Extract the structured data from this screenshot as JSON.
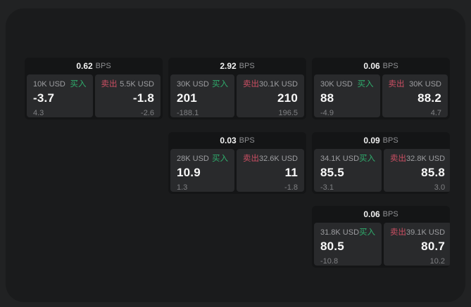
{
  "colors": {
    "buy_green": "#2fae6d",
    "sell_red": "#cc4f63"
  },
  "cards": [
    {
      "row": 1,
      "col": 1,
      "bps_value": "0.62",
      "bps_unit": "BPS",
      "buy": {
        "amount": "10K USD",
        "side_label": "买入",
        "price": "-3.7",
        "delta": "4.3"
      },
      "sell": {
        "amount": "5.5K USD",
        "side_label": "卖出",
        "price": "-1.8",
        "delta": "-2.6"
      }
    },
    {
      "row": 1,
      "col": 2,
      "bps_value": "2.92",
      "bps_unit": "BPS",
      "buy": {
        "amount": "30K USD",
        "side_label": "买入",
        "price": "201",
        "delta": "-188.1"
      },
      "sell": {
        "amount": "30.1K USD",
        "side_label": "卖出",
        "price": "210",
        "delta": "196.5"
      }
    },
    {
      "row": 1,
      "col": 3,
      "bps_value": "0.06",
      "bps_unit": "BPS",
      "buy": {
        "amount": "30K USD",
        "side_label": "买入",
        "price": "88",
        "delta": "-4.9"
      },
      "sell": {
        "amount": "30K USD",
        "side_label": "卖出",
        "price": "88.2",
        "delta": "4.7"
      }
    },
    {
      "row": 2,
      "col": 2,
      "bps_value": "0.03",
      "bps_unit": "BPS",
      "buy": {
        "amount": "28K USD",
        "side_label": "买入",
        "price": "10.9",
        "delta": "1.3"
      },
      "sell": {
        "amount": "32.6K USD",
        "side_label": "卖出",
        "price": "11",
        "delta": "-1.8"
      }
    },
    {
      "row": 2,
      "col": 3,
      "bps_value": "0.09",
      "bps_unit": "BPS",
      "buy": {
        "amount": "34.1K USD",
        "side_label": "买入",
        "price": "85.5",
        "delta": "-3.1"
      },
      "sell": {
        "amount": "32.8K USD",
        "side_label": "卖出",
        "price": "85.8",
        "delta": "3.0"
      }
    },
    {
      "row": 3,
      "col": 3,
      "bps_value": "0.06",
      "bps_unit": "BPS",
      "buy": {
        "amount": "31.8K USD",
        "side_label": "买入",
        "price": "80.5",
        "delta": "-10.8"
      },
      "sell": {
        "amount": "39.1K USD",
        "side_label": "卖出",
        "price": "80.7",
        "delta": "10.2"
      }
    }
  ]
}
